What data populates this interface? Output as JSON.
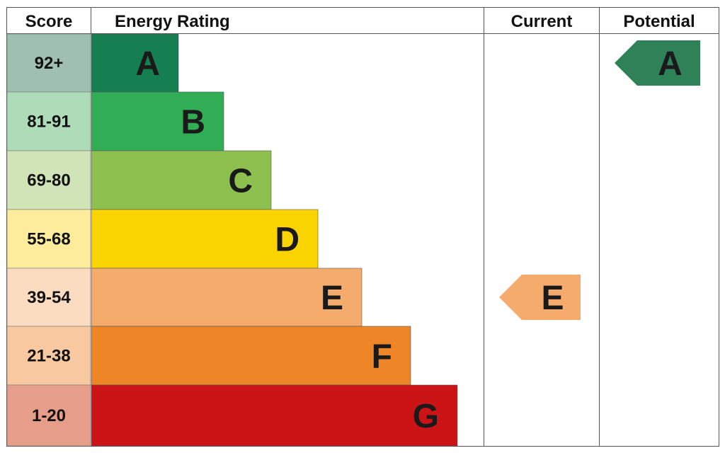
{
  "chart_data": {
    "type": "bar",
    "headers": {
      "score": "Score",
      "rating": "Energy Rating",
      "current": "Current",
      "potential": "Potential"
    },
    "bands": [
      {
        "letter": "A",
        "range": "92+",
        "bar_color": "#157f52",
        "score_bg": "#9fc0b1"
      },
      {
        "letter": "B",
        "range": "81-91",
        "bar_color": "#30ad55",
        "score_bg": "#aedbb8"
      },
      {
        "letter": "C",
        "range": "69-80",
        "bar_color": "#8dc04f",
        "score_bg": "#d1e4b8"
      },
      {
        "letter": "D",
        "range": "55-68",
        "bar_color": "#fad400",
        "score_bg": "#fcec9c"
      },
      {
        "letter": "E",
        "range": "39-54",
        "bar_color": "#f4ab6c",
        "score_bg": "#fbdcc1"
      },
      {
        "letter": "F",
        "range": "21-38",
        "bar_color": "#ee8527",
        "score_bg": "#f8c9a0"
      },
      {
        "letter": "G",
        "range": "1-20",
        "bar_color": "#cc1417",
        "score_bg": "#e69e8b"
      }
    ],
    "current": {
      "letter": "E",
      "color": "#f4ab6c"
    },
    "potential": {
      "letter": "A",
      "color": "#2f8258"
    }
  }
}
